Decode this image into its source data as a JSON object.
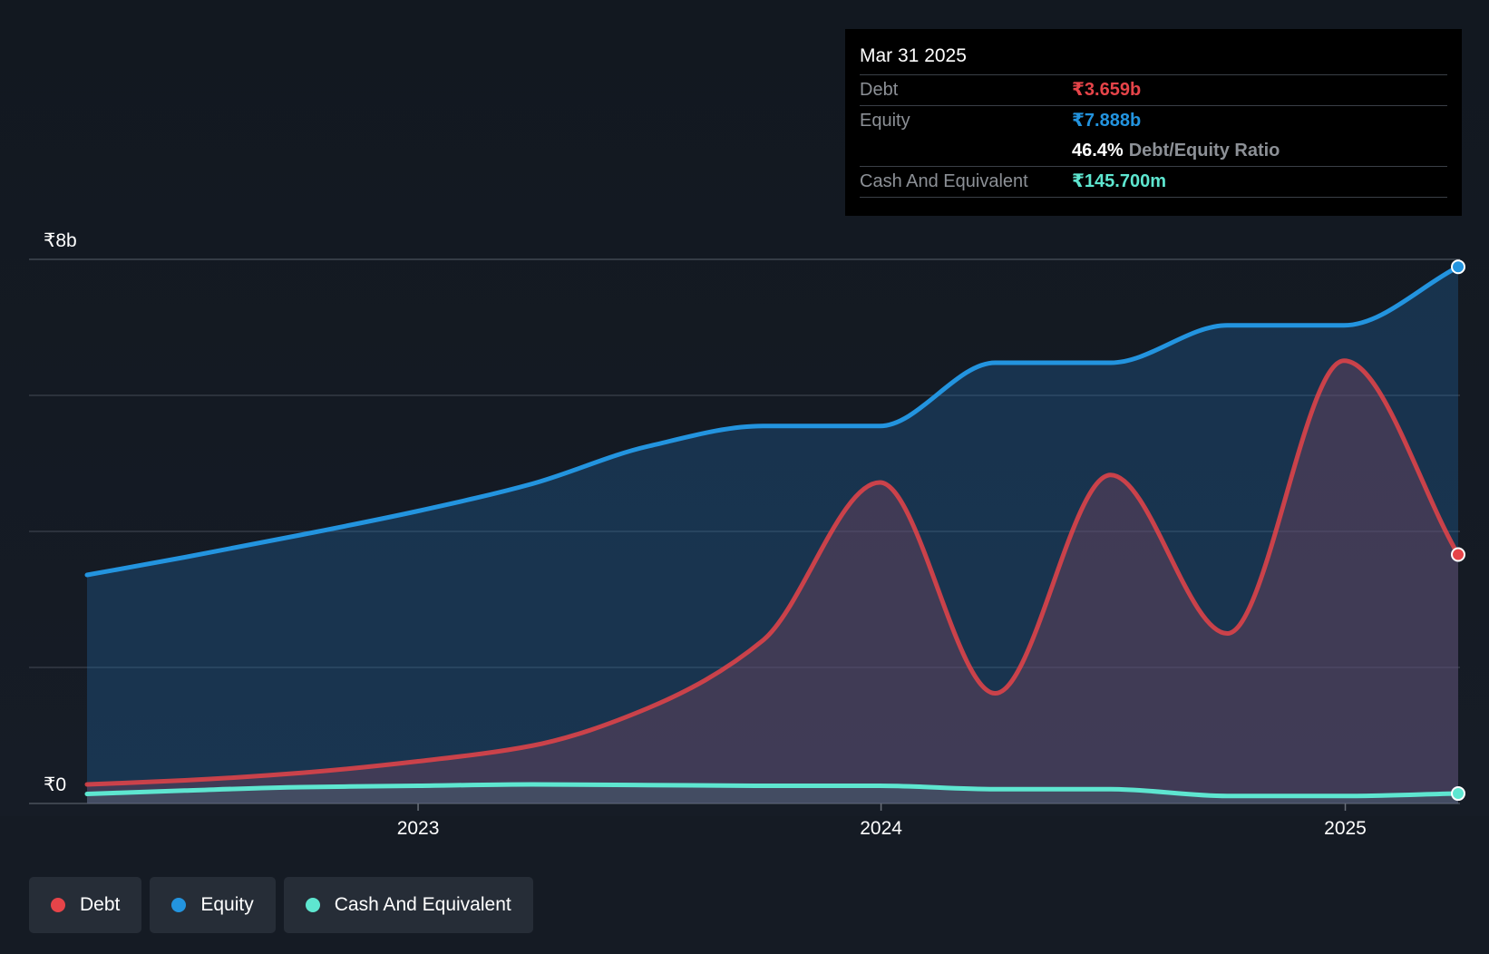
{
  "colors": {
    "debt": "#e64449",
    "equity": "#2394df",
    "cash": "#5ee6d0",
    "background": "#151b24",
    "grid": "#3a414c"
  },
  "tooltip": {
    "date": "Mar 31 2025",
    "debt_label": "Debt",
    "debt_value": "₹3.659b",
    "equity_label": "Equity",
    "equity_value": "₹7.888b",
    "ratio_value": "46.4%",
    "ratio_label": "Debt/Equity Ratio",
    "cash_label": "Cash And Equivalent",
    "cash_value": "₹145.700m"
  },
  "legend": [
    {
      "label": "Debt",
      "color_key": "debt"
    },
    {
      "label": "Equity",
      "color_key": "equity"
    },
    {
      "label": "Cash And Equivalent",
      "color_key": "cash"
    }
  ],
  "chart_data": {
    "type": "area",
    "y_unit": "₹ billions",
    "ylim": [
      0,
      8
    ],
    "xlim": [
      "2022-04-15",
      "2025-03-31"
    ],
    "y_tick_labels": [
      {
        "value": 8,
        "label": "₹8b"
      },
      {
        "value": 0,
        "label": "₹0"
      }
    ],
    "x_ticks": [
      {
        "date": "2023-01-01",
        "label": "2023"
      },
      {
        "date": "2024-01-01",
        "label": "2024"
      },
      {
        "date": "2025-01-01",
        "label": "2025"
      }
    ],
    "grid_values": [
      2,
      4,
      6,
      8
    ],
    "series": [
      {
        "name": "Equity",
        "color_key": "equity",
        "points": [
          [
            "2022-04-15",
            3.36
          ],
          [
            "2022-07-01",
            3.62
          ],
          [
            "2022-10-01",
            3.95
          ],
          [
            "2023-01-01",
            4.3
          ],
          [
            "2023-04-01",
            4.7
          ],
          [
            "2023-07-01",
            5.25
          ],
          [
            "2023-09-30",
            5.55
          ],
          [
            "2023-12-31",
            5.55
          ],
          [
            "2024-03-31",
            6.48
          ],
          [
            "2024-06-30",
            6.48
          ],
          [
            "2024-09-30",
            7.03
          ],
          [
            "2024-12-31",
            7.03
          ],
          [
            "2025-03-31",
            7.89
          ]
        ]
      },
      {
        "name": "Debt",
        "color_key": "debt",
        "points": [
          [
            "2022-04-15",
            0.28
          ],
          [
            "2022-07-01",
            0.34
          ],
          [
            "2022-10-01",
            0.45
          ],
          [
            "2023-01-01",
            0.62
          ],
          [
            "2023-04-01",
            0.85
          ],
          [
            "2023-07-01",
            1.4
          ],
          [
            "2023-09-30",
            2.4
          ],
          [
            "2023-12-31",
            4.72
          ],
          [
            "2024-03-31",
            1.62
          ],
          [
            "2024-06-30",
            4.83
          ],
          [
            "2024-09-30",
            2.5
          ],
          [
            "2024-12-31",
            6.51
          ],
          [
            "2025-03-31",
            3.66
          ]
        ]
      },
      {
        "name": "Cash And Equivalent",
        "color_key": "cash",
        "points": [
          [
            "2022-04-15",
            0.14
          ],
          [
            "2022-07-01",
            0.19
          ],
          [
            "2022-10-01",
            0.24
          ],
          [
            "2023-01-01",
            0.26
          ],
          [
            "2023-04-01",
            0.28
          ],
          [
            "2023-07-01",
            0.27
          ],
          [
            "2023-09-30",
            0.26
          ],
          [
            "2023-12-31",
            0.26
          ],
          [
            "2024-03-31",
            0.21
          ],
          [
            "2024-06-30",
            0.21
          ],
          [
            "2024-09-30",
            0.11
          ],
          [
            "2024-12-31",
            0.11
          ],
          [
            "2025-03-31",
            0.146
          ]
        ]
      }
    ]
  }
}
